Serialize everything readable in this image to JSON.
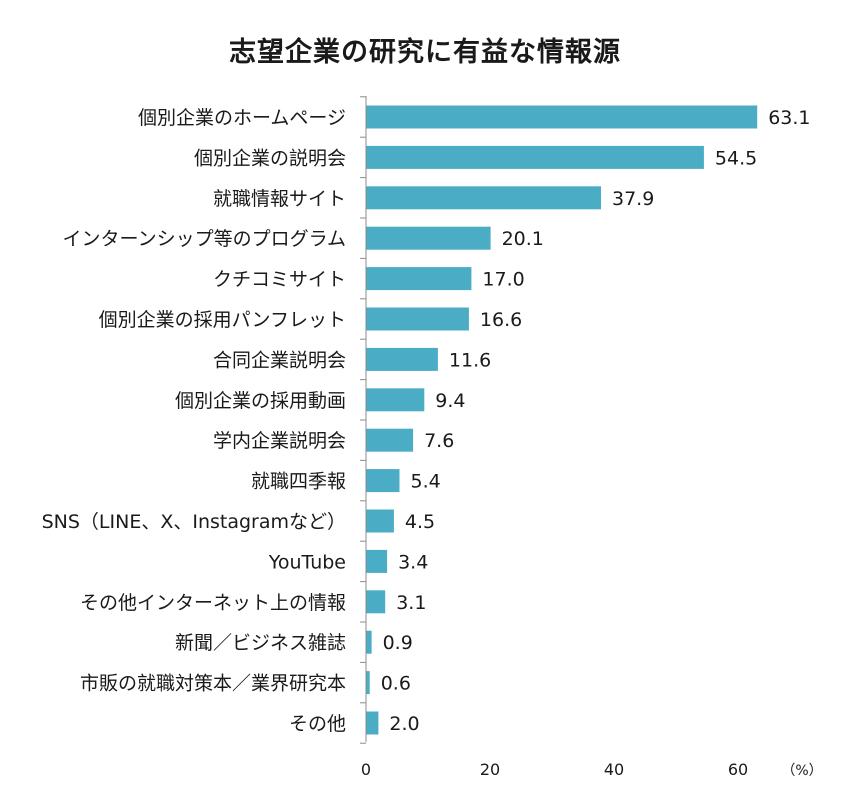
{
  "chart_data": {
    "type": "bar",
    "orientation": "horizontal",
    "title": "志望企業の研究に有益な情報源",
    "categories": [
      "個別企業のホームページ",
      "個別企業の説明会",
      "就職情報サイト",
      "インターンシップ等のプログラム",
      "クチコミサイト",
      "個別企業の採用パンフレット",
      "合同企業説明会",
      "個別企業の採用動画",
      "学内企業説明会",
      "就職四季報",
      "SNS（LINE、X、Instagramなど）",
      "YouTube",
      "その他インターネット上の情報",
      "新聞／ビジネス雑誌",
      "市販の就職対策本／業界研究本",
      "その他"
    ],
    "values": [
      63.1,
      54.5,
      37.9,
      20.1,
      17.0,
      16.6,
      11.6,
      9.4,
      7.6,
      5.4,
      4.5,
      3.4,
      3.1,
      0.9,
      0.6,
      2.0
    ],
    "value_labels": [
      "63.1",
      "54.5",
      "37.9",
      "20.1",
      "17.0",
      "16.6",
      "11.6",
      "9.4",
      "7.6",
      "5.4",
      "4.5",
      "3.4",
      "3.1",
      "0.9",
      "0.6",
      "2.0"
    ],
    "xlim": [
      0,
      65
    ],
    "xticks": [
      0,
      20,
      40,
      60
    ],
    "xtick_labels": [
      "0",
      "20",
      "40",
      "60"
    ],
    "unit": "（%）",
    "bar_color": "#4bacc6",
    "grid": false,
    "legend": "none"
  }
}
